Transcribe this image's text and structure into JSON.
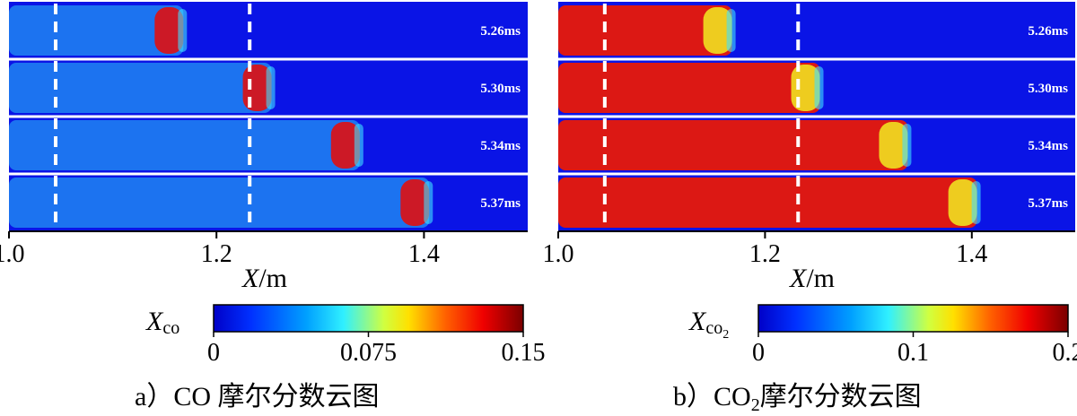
{
  "chart_data": [
    {
      "type": "heatmap",
      "panel": "a",
      "caption_prefix": "a）",
      "caption_text": "CO 摩尔分数云图",
      "variable_main": "X",
      "variable_sub": "co",
      "xlabel_var": "X",
      "xlabel_unit": "/m",
      "x_ticks": [
        1.0,
        1.2,
        1.4
      ],
      "x_tick_labels": [
        "1.0",
        "1.2",
        "1.4"
      ],
      "xlim": [
        1.0,
        1.5
      ],
      "frames": [
        {
          "time": "5.26ms",
          "front_x": 1.175
        },
        {
          "time": "5.30ms",
          "front_x": 1.26
        },
        {
          "time": "5.34ms",
          "front_x": 1.345
        },
        {
          "time": "5.37ms",
          "front_x": 1.412
        }
      ],
      "obstacles_x": [
        1.045,
        1.232
      ],
      "colorbar_range": [
        0,
        0.15
      ],
      "colorbar_ticks": [
        0,
        0.075,
        0.15
      ],
      "colorbar_tick_labels": [
        "0",
        "0.075",
        "0.15"
      ],
      "colors": {
        "background": "#0a14e6",
        "burned": "#1e78f0",
        "front": "#e01010"
      }
    },
    {
      "type": "heatmap",
      "panel": "b",
      "caption_prefix": "b）",
      "caption_main": "CO",
      "caption_sub": "2",
      "caption_text": "摩尔分数云图",
      "variable_main": "X",
      "variable_sub": "co",
      "variable_subsub": "2",
      "xlabel_var": "X",
      "xlabel_unit": "/m",
      "x_ticks": [
        1.0,
        1.2,
        1.4
      ],
      "x_tick_labels": [
        "1.0",
        "1.2",
        "1.4"
      ],
      "xlim": [
        1.0,
        1.5
      ],
      "frames": [
        {
          "time": "5.26ms",
          "front_x": 1.175
        },
        {
          "time": "5.30ms",
          "front_x": 1.26
        },
        {
          "time": "5.34ms",
          "front_x": 1.345
        },
        {
          "time": "5.37ms",
          "front_x": 1.412
        }
      ],
      "obstacles_x": [
        1.045,
        1.232
      ],
      "colorbar_range": [
        0,
        0.2
      ],
      "colorbar_ticks": [
        0,
        0.1,
        0.2
      ],
      "colorbar_tick_labels": [
        "0",
        "0.1",
        "0.2"
      ],
      "colors": {
        "background": "#0a14e6",
        "burned": "#e81808",
        "front": "#f0e020"
      }
    }
  ]
}
